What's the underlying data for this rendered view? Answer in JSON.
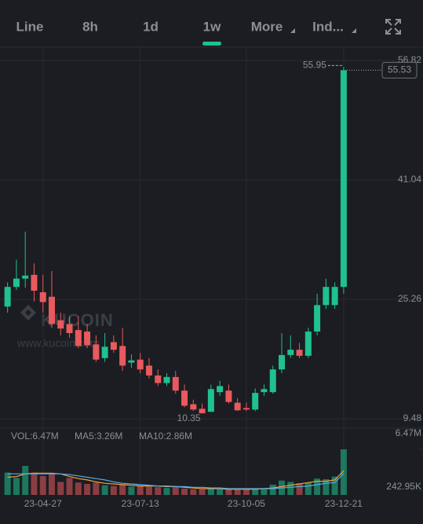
{
  "toolbar": {
    "tabs": [
      "Line",
      "8h",
      "1d",
      "1w",
      "More",
      "Ind..."
    ],
    "active": 3
  },
  "watermark": {
    "brand": "KUCOIN",
    "url": "www.kucoin.com"
  },
  "chart_data": [
    {
      "type": "candlestick",
      "x": [
        "23-03-30",
        "23-04-06",
        "23-04-13",
        "23-04-20",
        "23-04-27",
        "23-05-04",
        "23-05-11",
        "23-05-18",
        "23-05-25",
        "23-06-01",
        "23-06-08",
        "23-06-15",
        "23-06-22",
        "23-06-29",
        "23-07-06",
        "23-07-13",
        "23-07-20",
        "23-07-27",
        "23-08-03",
        "23-08-10",
        "23-08-17",
        "23-08-24",
        "23-08-31",
        "23-09-07",
        "23-09-14",
        "23-09-21",
        "23-09-28",
        "23-10-05",
        "23-10-12",
        "23-10-19",
        "23-10-26",
        "23-11-02",
        "23-11-09",
        "23-11-16",
        "23-11-23",
        "23-11-30",
        "23-12-07",
        "23-12-14",
        "23-12-21"
      ],
      "open": [
        24.3,
        26.9,
        28.0,
        28.5,
        26.2,
        25.6,
        22.5,
        22.0,
        21.2,
        21.0,
        19.3,
        17.5,
        19.6,
        19.1,
        16.9,
        17.3,
        16.5,
        15.2,
        14.2,
        15.0,
        13.2,
        11.4,
        10.8,
        10.4,
        13.0,
        13.2,
        11.6,
        10.9,
        10.7,
        13.0,
        13.0,
        16.0,
        17.9,
        18.6,
        17.8,
        21.0,
        24.5,
        24.5,
        26.9
      ],
      "high": [
        27.5,
        30.5,
        34.2,
        30.0,
        28.5,
        29.0,
        23.5,
        23.0,
        23.0,
        22.0,
        20.5,
        20.8,
        20.5,
        21.5,
        18.0,
        18.2,
        17.5,
        16.0,
        15.5,
        15.8,
        14.0,
        12.0,
        11.5,
        14.0,
        14.5,
        14.0,
        12.2,
        11.6,
        13.5,
        14.0,
        16.5,
        20.8,
        20.5,
        19.5,
        21.5,
        26.0,
        28.0,
        27.5,
        55.95
      ],
      "low": [
        23.5,
        26.5,
        26.8,
        25.0,
        23.5,
        21.5,
        20.5,
        20.2,
        18.8,
        18.8,
        17.0,
        17.0,
        18.2,
        15.8,
        16.2,
        15.5,
        14.8,
        13.8,
        13.8,
        12.8,
        11.0,
        10.5,
        10.35,
        10.4,
        12.5,
        11.5,
        10.5,
        10.5,
        10.5,
        12.5,
        12.8,
        15.5,
        17.5,
        17.5,
        17.5,
        20.5,
        24.0,
        24.0,
        26.0
      ],
      "close": [
        26.9,
        28.0,
        28.4,
        26.4,
        24.9,
        22.0,
        21.4,
        20.8,
        19.1,
        19.2,
        17.3,
        19.0,
        18.6,
        16.5,
        17.2,
        16.0,
        15.2,
        14.2,
        15.0,
        13.2,
        11.2,
        10.7,
        10.2,
        13.4,
        13.8,
        11.7,
        10.6,
        10.7,
        12.9,
        13.4,
        16.0,
        17.9,
        18.6,
        17.8,
        21.0,
        24.5,
        26.9,
        26.9,
        55.53
      ],
      "up_color": "#1fc190",
      "down_color": "#e85a5d",
      "xlim": [
        "23-03-24",
        "23-12-31"
      ],
      "xticks": [
        "23-04-27",
        "23-07-13",
        "23-10-05",
        "23-12-21"
      ],
      "ylim": [
        8.24,
        58.58
      ],
      "yticks": [
        56.82,
        41.04,
        25.26,
        9.48
      ],
      "grid": true,
      "high_label": {
        "x": "23-12-21",
        "value": 55.95
      },
      "low_label": {
        "x": "23-08-31",
        "value": 10.35
      },
      "last_price": 55.53
    },
    {
      "type": "bar",
      "x": [
        "23-03-30",
        "23-04-06",
        "23-04-13",
        "23-04-20",
        "23-04-27",
        "23-05-04",
        "23-05-11",
        "23-05-18",
        "23-05-25",
        "23-06-01",
        "23-06-08",
        "23-06-15",
        "23-06-22",
        "23-06-29",
        "23-07-06",
        "23-07-13",
        "23-07-20",
        "23-07-27",
        "23-08-03",
        "23-08-10",
        "23-08-17",
        "23-08-24",
        "23-08-31",
        "23-09-07",
        "23-09-14",
        "23-09-21",
        "23-09-28",
        "23-10-05",
        "23-10-12",
        "23-10-19",
        "23-10-26",
        "23-11-02",
        "23-11-09",
        "23-11-16",
        "23-11-23",
        "23-11-30",
        "23-12-07",
        "23-12-14",
        "23-12-21"
      ],
      "series": [
        {
          "name": "VOL:6.47M",
          "color": "#2ebd85",
          "values": [
            3000000,
            2200000,
            4000000,
            3000000,
            2500000,
            2800000,
            1600000,
            2200000,
            1500000,
            1300000,
            1500000,
            1100000,
            1000000,
            1200000,
            900000,
            1000000,
            900000,
            800000,
            700000,
            900000,
            600000,
            500000,
            500000,
            600000,
            500000,
            500000,
            600000,
            500000,
            600000,
            700000,
            1200000,
            1800000,
            1600000,
            1400000,
            1500000,
            2100000,
            2000000,
            2400000,
            6470000
          ]
        },
        {
          "name": "MA5:3.26M",
          "color": "#f0a33a",
          "values": [
            2300000,
            2400000,
            2800000,
            2900000,
            2900000,
            2900000,
            2800000,
            2400000,
            2100000,
            1900000,
            1600000,
            1400000,
            1300000,
            1200000,
            1100000,
            1000000,
            1000000,
            1000000,
            900000,
            900000,
            800000,
            700000,
            600000,
            600000,
            600000,
            500000,
            500000,
            500000,
            500000,
            600000,
            700000,
            900000,
            1100000,
            1300000,
            1500000,
            1700000,
            1700000,
            1900000,
            3260000
          ]
        },
        {
          "name": "MA10:2.86M",
          "color": "#5aa9e6",
          "values": [
            2800000,
            2800000,
            2800000,
            2800000,
            2800000,
            2800000,
            2800000,
            2700000,
            2500000,
            2300000,
            2100000,
            1900000,
            1600000,
            1400000,
            1300000,
            1200000,
            1100000,
            1000000,
            1000000,
            900000,
            900000,
            800000,
            800000,
            700000,
            700000,
            600000,
            600000,
            600000,
            600000,
            600000,
            600000,
            700000,
            800000,
            900000,
            1000000,
            1200000,
            1400000,
            1500000,
            2860000
          ]
        }
      ],
      "up_color": "#1fc190",
      "down_color": "#e85a5d",
      "xlim": [
        "23-03-24",
        "23-12-31"
      ],
      "ylim": [
        242950,
        6470000
      ],
      "yticks": [
        {
          "value": 6470000,
          "label": "6.47M"
        },
        {
          "value": 242950,
          "label": "242.95K"
        }
      ]
    }
  ]
}
